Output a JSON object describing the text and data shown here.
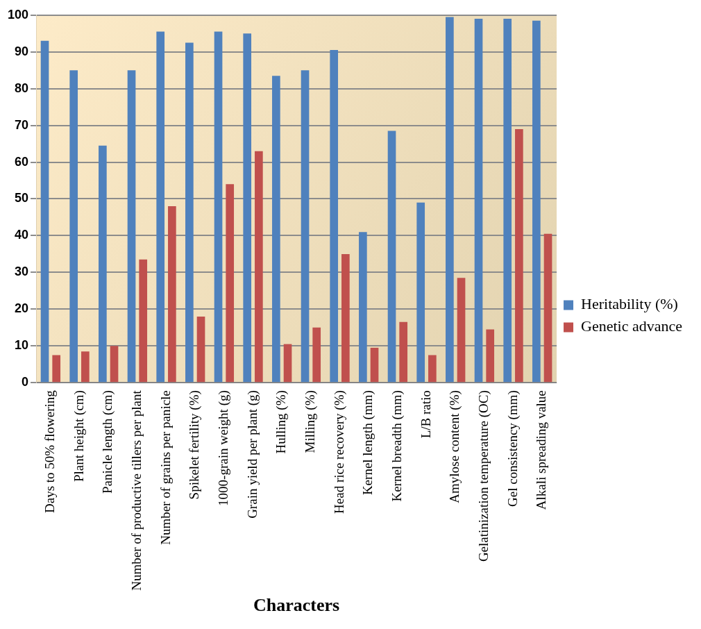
{
  "chart_data": {
    "type": "bar",
    "xlabel": "Characters",
    "categories": [
      "Days to 50% flowering",
      "Plant height (cm)",
      "Panicle length (cm)",
      "Number of productive tillers per plant",
      "Number of grains per panicle",
      "Spikelet fertility (%)",
      "1000-grain weight (g)",
      "Grain yield per plant (g)",
      "Hulling (%)",
      "Milling (%)",
      "Head rice recovery (%)",
      "Kernel length (mm)",
      "Kernel breadth (mm)",
      "L/B ratio",
      "Amylose content (%)",
      "Gelatinization temperature (OC)",
      "Gel consistency (mm)",
      "Alkali spreading value"
    ],
    "series": [
      {
        "name": "Heritability (%)",
        "color": "#4f81bd",
        "values": [
          93,
          85,
          64.5,
          85,
          95.5,
          92.5,
          95.5,
          95,
          83.5,
          85,
          90.5,
          41,
          68.5,
          49,
          99.5,
          99,
          99,
          98.5
        ]
      },
      {
        "name": "Genetic advance",
        "color": "#c0504d",
        "values": [
          7.5,
          8.5,
          10,
          33.5,
          48,
          18,
          54,
          63,
          10.5,
          15,
          35,
          9.5,
          16.5,
          7.5,
          28.5,
          14.5,
          69,
          40.5
        ]
      }
    ],
    "ylim": [
      0,
      100
    ],
    "yticks": [
      0,
      10,
      20,
      30,
      40,
      50,
      60,
      70,
      80,
      90,
      100
    ],
    "grid": "y",
    "legend": "right"
  }
}
